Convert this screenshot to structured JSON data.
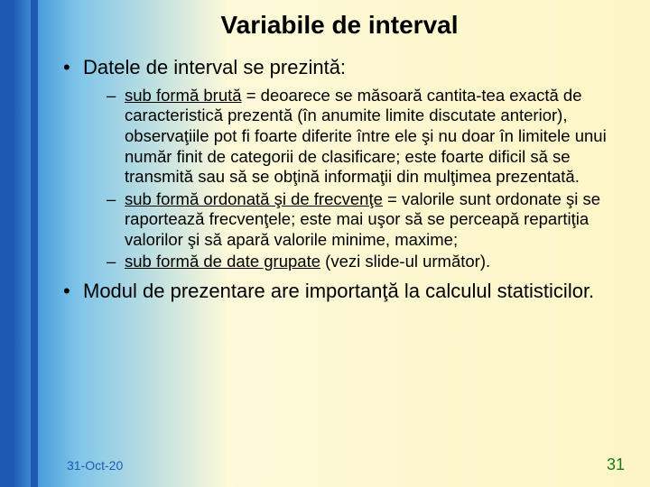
{
  "title": "Variabile de interval",
  "bullets": {
    "b1": "Datele de interval se prezintă:",
    "s1_u": "sub formă brută",
    "s1_rest": " = deoarece se măsoară cantita-tea exactă de caracteristică prezentă (în anumite limite discutate anterior), observaţiile pot fi foarte diferite între ele şi nu doar în limitele unui număr finit de categorii de clasificare; este foarte dificil să se transmită sau să se obţină informaţii din mulţimea prezentată.",
    "s2_u": "sub formă ordonată şi de frecvenţe",
    "s2_rest": " = valorile sunt ordonate şi se raportează frecvenţele; este mai uşor să se perceapă repartiţia valorilor şi să apară valorile minime, maxime;",
    "s3_u": "sub formă de date grupate",
    "s3_rest": " (vezi slide-ul următor).",
    "b2": "Modul de prezentare are importanţă la calculul statisticilor."
  },
  "footer": {
    "date": "31-Oct-20",
    "page": "31"
  },
  "colors": {
    "stripe": "#1e5ab5",
    "page_number": "#1a7a1a"
  }
}
